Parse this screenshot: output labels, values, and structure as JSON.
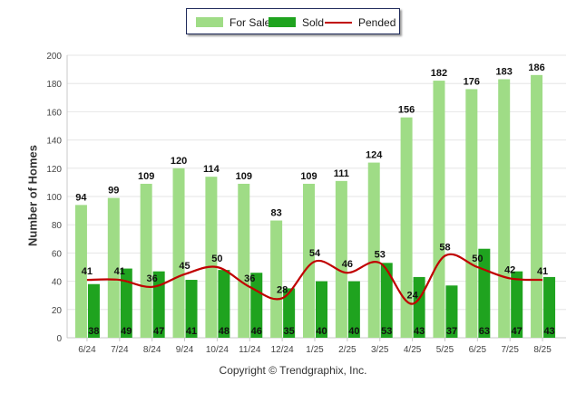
{
  "chart_data": {
    "type": "bar",
    "categories": [
      "6/24",
      "7/24",
      "8/24",
      "9/24",
      "10/24",
      "11/24",
      "12/24",
      "1/25",
      "2/25",
      "3/25",
      "4/25",
      "5/25",
      "6/25",
      "7/25",
      "8/25"
    ],
    "series": [
      {
        "name": "For Sale",
        "kind": "bar",
        "color": "#9fdc86",
        "values": [
          94,
          99,
          109,
          120,
          114,
          109,
          83,
          109,
          111,
          124,
          156,
          182,
          176,
          183,
          186
        ]
      },
      {
        "name": "Sold",
        "kind": "bar",
        "color": "#1fa31f",
        "values": [
          38,
          49,
          47,
          41,
          48,
          46,
          35,
          40,
          40,
          53,
          43,
          37,
          63,
          47,
          43
        ]
      },
      {
        "name": "Pended",
        "kind": "line",
        "color": "#c00000",
        "values": [
          41,
          41,
          36,
          45,
          50,
          36,
          28,
          54,
          46,
          53,
          24,
          58,
          50,
          42,
          41
        ]
      }
    ],
    "ylabel": "Number of Homes",
    "xlabel": "",
    "ylim": [
      0,
      200
    ],
    "yticks": [
      0,
      20,
      40,
      60,
      80,
      100,
      120,
      140,
      160,
      180,
      200
    ],
    "grid": true,
    "legend_position": "top-center"
  },
  "legend": {
    "items": [
      {
        "label": "For Sale",
        "color": "#9fdc86"
      },
      {
        "label": "Sold",
        "color": "#1fa31f"
      },
      {
        "label": "Pended",
        "color": "#c00000"
      }
    ]
  },
  "axis": {
    "y_title": "Number of Homes"
  },
  "footer": {
    "copyright": "Copyright © Trendgraphix, Inc."
  }
}
